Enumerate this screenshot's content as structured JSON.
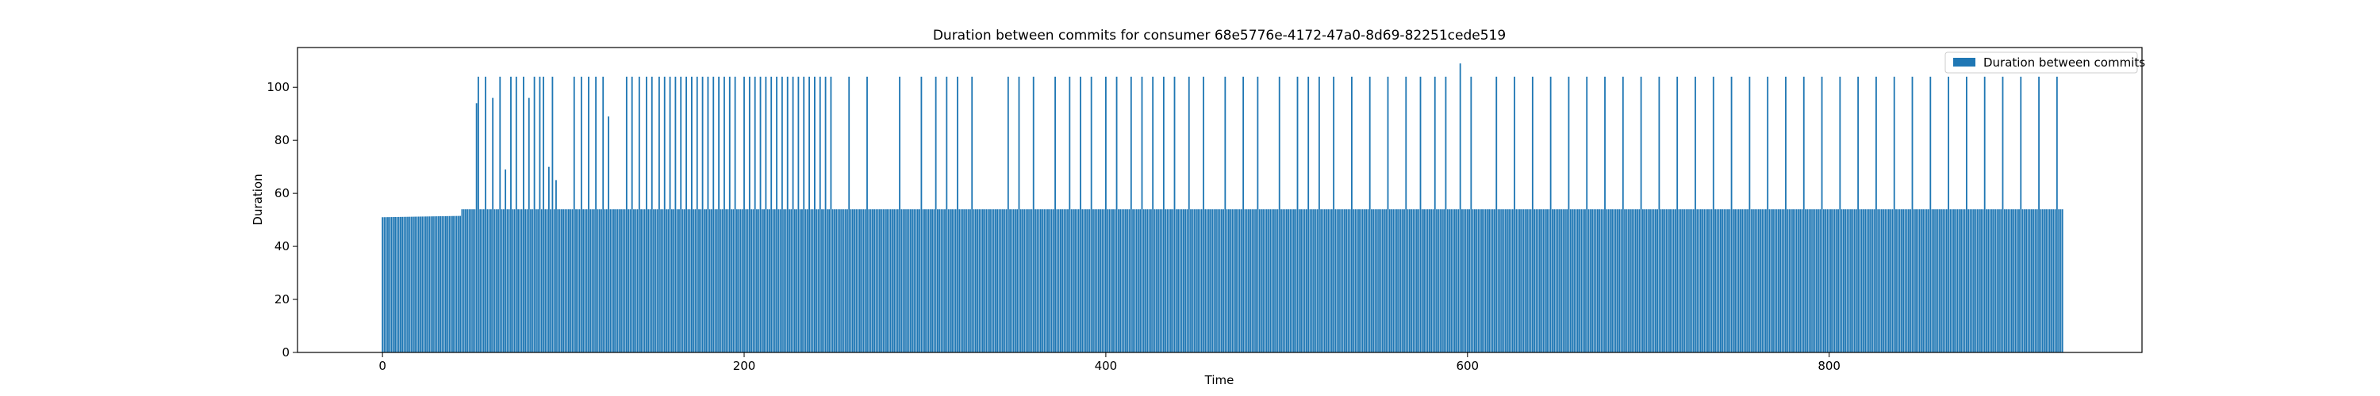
{
  "chart_data": {
    "type": "bar",
    "title": "Duration between commits for consumer 68e5776e-4172-47a0-8d69-82251cede519",
    "xlabel": "Time",
    "ylabel": "Duration",
    "xlim": [
      -47,
      973
    ],
    "ylim": [
      0,
      115
    ],
    "xticks": [
      0,
      200,
      400,
      600,
      800
    ],
    "yticks": [
      0,
      20,
      40,
      60,
      80,
      100
    ],
    "grid": false,
    "legend": {
      "position": "top-right"
    },
    "series": [
      {
        "name": "Duration between commits",
        "color": "#1f77b4",
        "x_start": 0,
        "x_step": 1,
        "baseline": [
          [
            0,
            51
          ],
          [
            43,
            51.5
          ],
          [
            44,
            54
          ],
          [
            930,
            54
          ]
        ],
        "peaks": [
          [
            52,
            94
          ],
          [
            53,
            104
          ],
          [
            57,
            104
          ],
          [
            61,
            96
          ],
          [
            65,
            104
          ],
          [
            68,
            69
          ],
          [
            71,
            104
          ],
          [
            74,
            104
          ],
          [
            78,
            104
          ],
          [
            81,
            96
          ],
          [
            84,
            104
          ],
          [
            87,
            104
          ],
          [
            89,
            104
          ],
          [
            92,
            70
          ],
          [
            94,
            104
          ],
          [
            96,
            65
          ],
          [
            106,
            104
          ],
          [
            110,
            104
          ],
          [
            114,
            104
          ],
          [
            118,
            104
          ],
          [
            122,
            104
          ],
          [
            125,
            89
          ],
          [
            135,
            104
          ],
          [
            138,
            104
          ],
          [
            142,
            104
          ],
          [
            146,
            104
          ],
          [
            149,
            104
          ],
          [
            153,
            104
          ],
          [
            156,
            104
          ],
          [
            159,
            104
          ],
          [
            162,
            104
          ],
          [
            165,
            104
          ],
          [
            168,
            104
          ],
          [
            171,
            104
          ],
          [
            174,
            104
          ],
          [
            177,
            104
          ],
          [
            180,
            104
          ],
          [
            183,
            104
          ],
          [
            186,
            104
          ],
          [
            189,
            104
          ],
          [
            192,
            104
          ],
          [
            195,
            104
          ],
          [
            200,
            104
          ],
          [
            203,
            104
          ],
          [
            206,
            104
          ],
          [
            209,
            104
          ],
          [
            212,
            104
          ],
          [
            215,
            104
          ],
          [
            218,
            104
          ],
          [
            221,
            104
          ],
          [
            224,
            104
          ],
          [
            227,
            104
          ],
          [
            230,
            104
          ],
          [
            233,
            104
          ],
          [
            236,
            104
          ],
          [
            239,
            104
          ],
          [
            242,
            104
          ],
          [
            245,
            104
          ],
          [
            248,
            104
          ],
          [
            258,
            104
          ],
          [
            268,
            104
          ],
          [
            286,
            104
          ],
          [
            298,
            104
          ],
          [
            306,
            104
          ],
          [
            312,
            104
          ],
          [
            318,
            104
          ],
          [
            326,
            104
          ],
          [
            346,
            104
          ],
          [
            352,
            104
          ],
          [
            360,
            104
          ],
          [
            372,
            104
          ],
          [
            380,
            104
          ],
          [
            386,
            104
          ],
          [
            392,
            104
          ],
          [
            400,
            104
          ],
          [
            406,
            104
          ],
          [
            414,
            104
          ],
          [
            420,
            104
          ],
          [
            426,
            104
          ],
          [
            432,
            104
          ],
          [
            438,
            104
          ],
          [
            446,
            104
          ],
          [
            454,
            104
          ],
          [
            466,
            104
          ],
          [
            476,
            104
          ],
          [
            484,
            104
          ],
          [
            496,
            104
          ],
          [
            506,
            104
          ],
          [
            512,
            104
          ],
          [
            518,
            104
          ],
          [
            526,
            104
          ],
          [
            536,
            104
          ],
          [
            546,
            104
          ],
          [
            556,
            104
          ],
          [
            566,
            104
          ],
          [
            574,
            104
          ],
          [
            582,
            104
          ],
          [
            588,
            104
          ],
          [
            596,
            109
          ],
          [
            602,
            104
          ],
          [
            616,
            104
          ],
          [
            626,
            104
          ],
          [
            636,
            104
          ],
          [
            646,
            104
          ],
          [
            656,
            104
          ],
          [
            666,
            104
          ],
          [
            676,
            104
          ],
          [
            686,
            104
          ],
          [
            696,
            104
          ],
          [
            706,
            104
          ],
          [
            716,
            104
          ],
          [
            726,
            104
          ],
          [
            736,
            104
          ],
          [
            746,
            104
          ],
          [
            756,
            104
          ],
          [
            766,
            104
          ],
          [
            776,
            104
          ],
          [
            786,
            104
          ],
          [
            796,
            104
          ],
          [
            806,
            104
          ],
          [
            816,
            104
          ],
          [
            826,
            104
          ],
          [
            836,
            104
          ],
          [
            846,
            104
          ],
          [
            856,
            104
          ],
          [
            866,
            104
          ],
          [
            876,
            104
          ],
          [
            886,
            104
          ],
          [
            896,
            104
          ],
          [
            906,
            104
          ],
          [
            916,
            104
          ],
          [
            926,
            104
          ]
        ]
      }
    ]
  }
}
